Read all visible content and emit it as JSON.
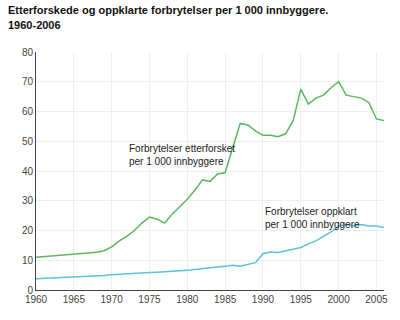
{
  "chart_data": {
    "type": "line",
    "title": "Etterforskede og oppklarte forbrytelser per 1 000 innbyggere.\n1960-2006",
    "x": [
      1960,
      1961,
      1962,
      1963,
      1964,
      1965,
      1966,
      1967,
      1968,
      1969,
      1970,
      1971,
      1972,
      1973,
      1974,
      1975,
      1976,
      1977,
      1978,
      1979,
      1980,
      1981,
      1982,
      1983,
      1984,
      1985,
      1986,
      1987,
      1988,
      1989,
      1990,
      1991,
      1992,
      1993,
      1994,
      1995,
      1996,
      1997,
      1998,
      1999,
      2000,
      2001,
      2002,
      2003,
      2004,
      2005,
      2006
    ],
    "series": [
      {
        "color": "#5cb85c",
        "values": [
          11.0,
          11.2,
          11.4,
          11.6,
          11.8,
          12.1,
          12.3,
          12.5,
          12.7,
          13.2,
          14.5,
          16.5,
          18.0,
          20.0,
          22.5,
          24.5,
          23.8,
          22.5,
          25.5,
          28.0,
          30.5,
          33.5,
          37.0,
          36.5,
          39.0,
          39.5,
          48.0,
          56.0,
          55.5,
          53.5,
          52.0,
          52.0,
          51.5,
          52.5,
          57.0,
          67.5,
          62.5,
          64.5,
          65.5,
          68.0,
          70.0,
          65.5,
          65.0,
          64.5,
          63.0,
          57.5,
          57.0
        ]
      },
      {
        "color": "#5bc0de",
        "values": [
          3.8,
          3.9,
          4.0,
          4.1,
          4.2,
          4.3,
          4.4,
          4.5,
          4.7,
          4.9,
          5.1,
          5.3,
          5.5,
          5.7,
          5.8,
          5.9,
          6.0,
          6.1,
          6.3,
          6.5,
          6.6,
          6.9,
          7.1,
          7.4,
          7.7,
          8.0,
          8.3,
          8.0,
          8.5,
          9.2,
          12.2,
          12.8,
          12.6,
          13.2,
          13.8,
          14.3,
          15.5,
          16.5,
          18.0,
          19.5,
          21.5,
          22.0,
          21.5,
          22.0,
          21.5,
          21.5,
          21.0
        ]
      }
    ],
    "annotations": [
      {
        "text": "Forbrytelser etterforsket\nper 1 000 innbyggere",
        "x": 1972,
        "y": 50
      },
      {
        "text": "Forbrytelser oppklart\nper 1 000 innbyggere",
        "x": 1990,
        "y": 29
      }
    ],
    "xlim": [
      1960,
      2006
    ],
    "xticks": [
      1960,
      1965,
      1970,
      1975,
      1980,
      1985,
      1990,
      1995,
      2000,
      2005
    ],
    "ylim": [
      0,
      80
    ],
    "yticks": [
      0,
      10,
      20,
      30,
      40,
      50,
      60,
      70,
      80
    ],
    "grid": true
  }
}
